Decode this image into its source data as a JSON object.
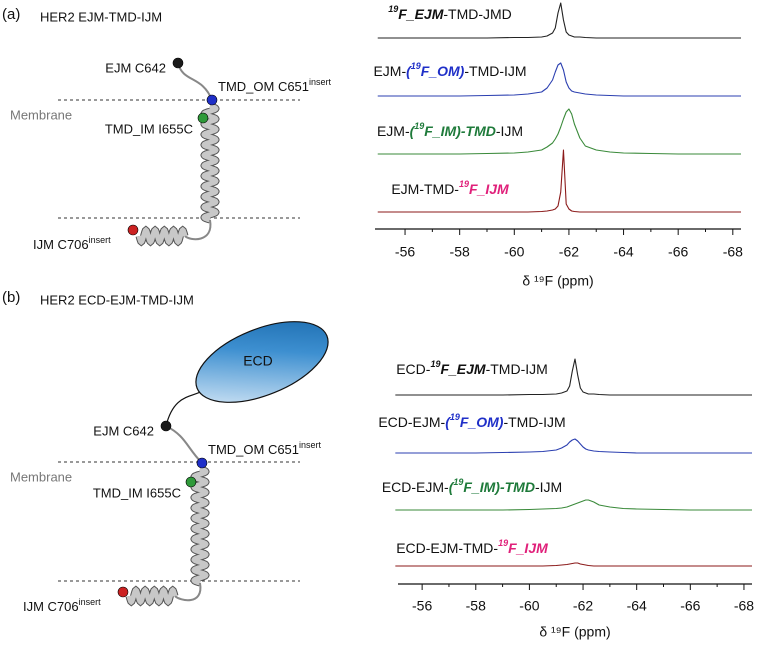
{
  "panels": [
    {
      "label": "(a)",
      "title": "HER2 EJM-TMD-IJM",
      "diagram": {
        "ejm": "EJM C642",
        "om": {
          "text": "TMD_OM C651",
          "sup": "insert"
        },
        "membrane": "Membrane",
        "im": "TMD_IM I655C",
        "ijm": {
          "text": "IJM C706",
          "sup": "insert"
        }
      }
    },
    {
      "label": "(b)",
      "title": "HER2 ECD-EJM-TMD-IJM",
      "diagram": {
        "ecd": "ECD",
        "ejm": "EJM C642",
        "om": {
          "text": "TMD_OM C651",
          "sup": "insert"
        },
        "membrane": "Membrane",
        "im": "TMD_IM I655C",
        "ijm": {
          "text": "IJM C706",
          "sup": "insert"
        }
      }
    }
  ],
  "chart_data": [
    {
      "type": "line",
      "xlabel": "δ ¹⁹F (ppm)",
      "xlim": [
        -54.9,
        -68.3
      ],
      "xticks": [
        -56,
        -58,
        -60,
        -62,
        -64,
        -66,
        -68
      ],
      "x": [
        -55,
        -56,
        -57,
        -58,
        -59,
        -60,
        -60.5,
        -61,
        -61.2,
        -61.4,
        -61.5,
        -61.6,
        -61.7,
        -61.8,
        -61.9,
        -62.0,
        -62.1,
        -62.2,
        -62.4,
        -62.6,
        -63,
        -63.5,
        -64,
        -65,
        -66,
        -67,
        -68.3
      ],
      "series": [
        {
          "name": [
            {
              "text": "19",
              "em": true,
              "sup": true,
              "color": "#111111"
            },
            {
              "text": "F_EJM",
              "em": true,
              "color": "#111111"
            },
            {
              "text": "-TMD-JMD"
            }
          ],
          "color": "#222222",
          "values": [
            0,
            0,
            0,
            0,
            0,
            0.5,
            0.5,
            1,
            2,
            5,
            10,
            25,
            35,
            18,
            6,
            3,
            2,
            1,
            1,
            0.5,
            0,
            0,
            0,
            0,
            0,
            0,
            0
          ]
        },
        {
          "name": [
            {
              "text": "EJM-"
            },
            {
              "text": "(",
              "em": true,
              "color": "#1f2fc8"
            },
            {
              "text": "19",
              "em": true,
              "sup": true,
              "color": "#1f2fc8"
            },
            {
              "text": "F_OM)",
              "em": true,
              "color": "#1f2fc8"
            },
            {
              "text": "-TMD-IJM"
            }
          ],
          "color": "#2b3fb0",
          "values": [
            0,
            0,
            0,
            0,
            0.5,
            1,
            2,
            4,
            8,
            16,
            24,
            31,
            33,
            26,
            14,
            8,
            5,
            4,
            3,
            2,
            1,
            0.5,
            0,
            0,
            0,
            0,
            0
          ]
        },
        {
          "name": [
            {
              "text": "EJM-"
            },
            {
              "text": "(",
              "em": true,
              "color": "#1e7a3a"
            },
            {
              "text": "19",
              "em": true,
              "sup": true,
              "color": "#1e7a3a"
            },
            {
              "text": "F_IM)-TMD",
              "em": true,
              "color": "#1e7a3a"
            },
            {
              "text": "-IJM"
            }
          ],
          "color": "#3a8a3a",
          "values": [
            0,
            0,
            0,
            0,
            0.5,
            1,
            2,
            4,
            7,
            11,
            15,
            20,
            27,
            35,
            42,
            45,
            40,
            30,
            16,
            8,
            4,
            2,
            1,
            0.5,
            0,
            0,
            0
          ]
        },
        {
          "name": [
            {
              "text": "EJM-TMD-"
            },
            {
              "text": "19",
              "em": true,
              "sup": true,
              "color": "#e0207a"
            },
            {
              "text": "F_IJM",
              "em": true,
              "color": "#e0207a"
            }
          ],
          "color": "#8b1a1a",
          "values": [
            0,
            0,
            0,
            0,
            0,
            0,
            0,
            0.5,
            1,
            2,
            3,
            6,
            20,
            62,
            8,
            3,
            1,
            0.5,
            0,
            0,
            0,
            0,
            0,
            0,
            0,
            0,
            0
          ]
        }
      ]
    },
    {
      "type": "line",
      "xlabel": "δ ¹⁹F (ppm)",
      "xlim": [
        -55.1,
        -68.3
      ],
      "xticks": [
        -56,
        -58,
        -60,
        -62,
        -64,
        -66,
        -68
      ],
      "x": [
        -55,
        -56,
        -57,
        -58,
        -59,
        -60,
        -60.5,
        -61,
        -61.2,
        -61.4,
        -61.5,
        -61.6,
        -61.7,
        -61.8,
        -61.9,
        -62.0,
        -62.1,
        -62.2,
        -62.4,
        -62.6,
        -63,
        -63.5,
        -64,
        -65,
        -66,
        -67,
        -68.3
      ],
      "series": [
        {
          "name": [
            {
              "text": "ECD-"
            },
            {
              "text": "19",
              "em": true,
              "sup": true,
              "color": "#111111"
            },
            {
              "text": "F_EJM",
              "em": true,
              "color": "#111111"
            },
            {
              "text": "-TMD-IJM"
            }
          ],
          "color": "#222222",
          "values": [
            0,
            0,
            0,
            0,
            0,
            0.5,
            0.5,
            1,
            2,
            4,
            9,
            24,
            36,
            20,
            7,
            3,
            2,
            1,
            1,
            0.5,
            0,
            0,
            0,
            0,
            0,
            0,
            0
          ]
        },
        {
          "name": [
            {
              "text": "ECD-EJM-"
            },
            {
              "text": "(",
              "em": true,
              "color": "#1f2fc8"
            },
            {
              "text": "19",
              "em": true,
              "sup": true,
              "color": "#1f2fc8"
            },
            {
              "text": "F_OM)",
              "em": true,
              "color": "#1f2fc8"
            },
            {
              "text": "-TMD-IJM"
            }
          ],
          "color": "#2b3fb0",
          "values": [
            0,
            0,
            0,
            0,
            0.5,
            1,
            1.5,
            3,
            5,
            8,
            11,
            13,
            14,
            12,
            9,
            6,
            4,
            3,
            2,
            1.5,
            1,
            0.5,
            0,
            0,
            0,
            0,
            0
          ]
        },
        {
          "name": [
            {
              "text": "ECD-EJM-"
            },
            {
              "text": "(",
              "em": true,
              "color": "#1e7a3a"
            },
            {
              "text": "19",
              "em": true,
              "sup": true,
              "color": "#1e7a3a"
            },
            {
              "text": "F_IM)-TMD",
              "em": true,
              "color": "#1e7a3a"
            },
            {
              "text": "-IJM"
            }
          ],
          "color": "#3a8a3a",
          "values": [
            0,
            0,
            0,
            0,
            0,
            0.5,
            1,
            1.5,
            2,
            3,
            4,
            5,
            6,
            7,
            8,
            9,
            10,
            10,
            8,
            5,
            3,
            1.5,
            1,
            0.5,
            0,
            0,
            0
          ]
        },
        {
          "name": [
            {
              "text": "ECD-EJM-TMD-"
            },
            {
              "text": "19",
              "em": true,
              "sup": true,
              "color": "#e0207a"
            },
            {
              "text": "F_IJM",
              "em": true,
              "color": "#e0207a"
            }
          ],
          "color": "#8b1a1a",
          "values": [
            0,
            0,
            0,
            0,
            0,
            0,
            0,
            0.5,
            1,
            1.5,
            2,
            2.5,
            3,
            3,
            2,
            1.5,
            1,
            0.5,
            0,
            0,
            0,
            0,
            0,
            0,
            0,
            0,
            0
          ]
        }
      ]
    }
  ]
}
